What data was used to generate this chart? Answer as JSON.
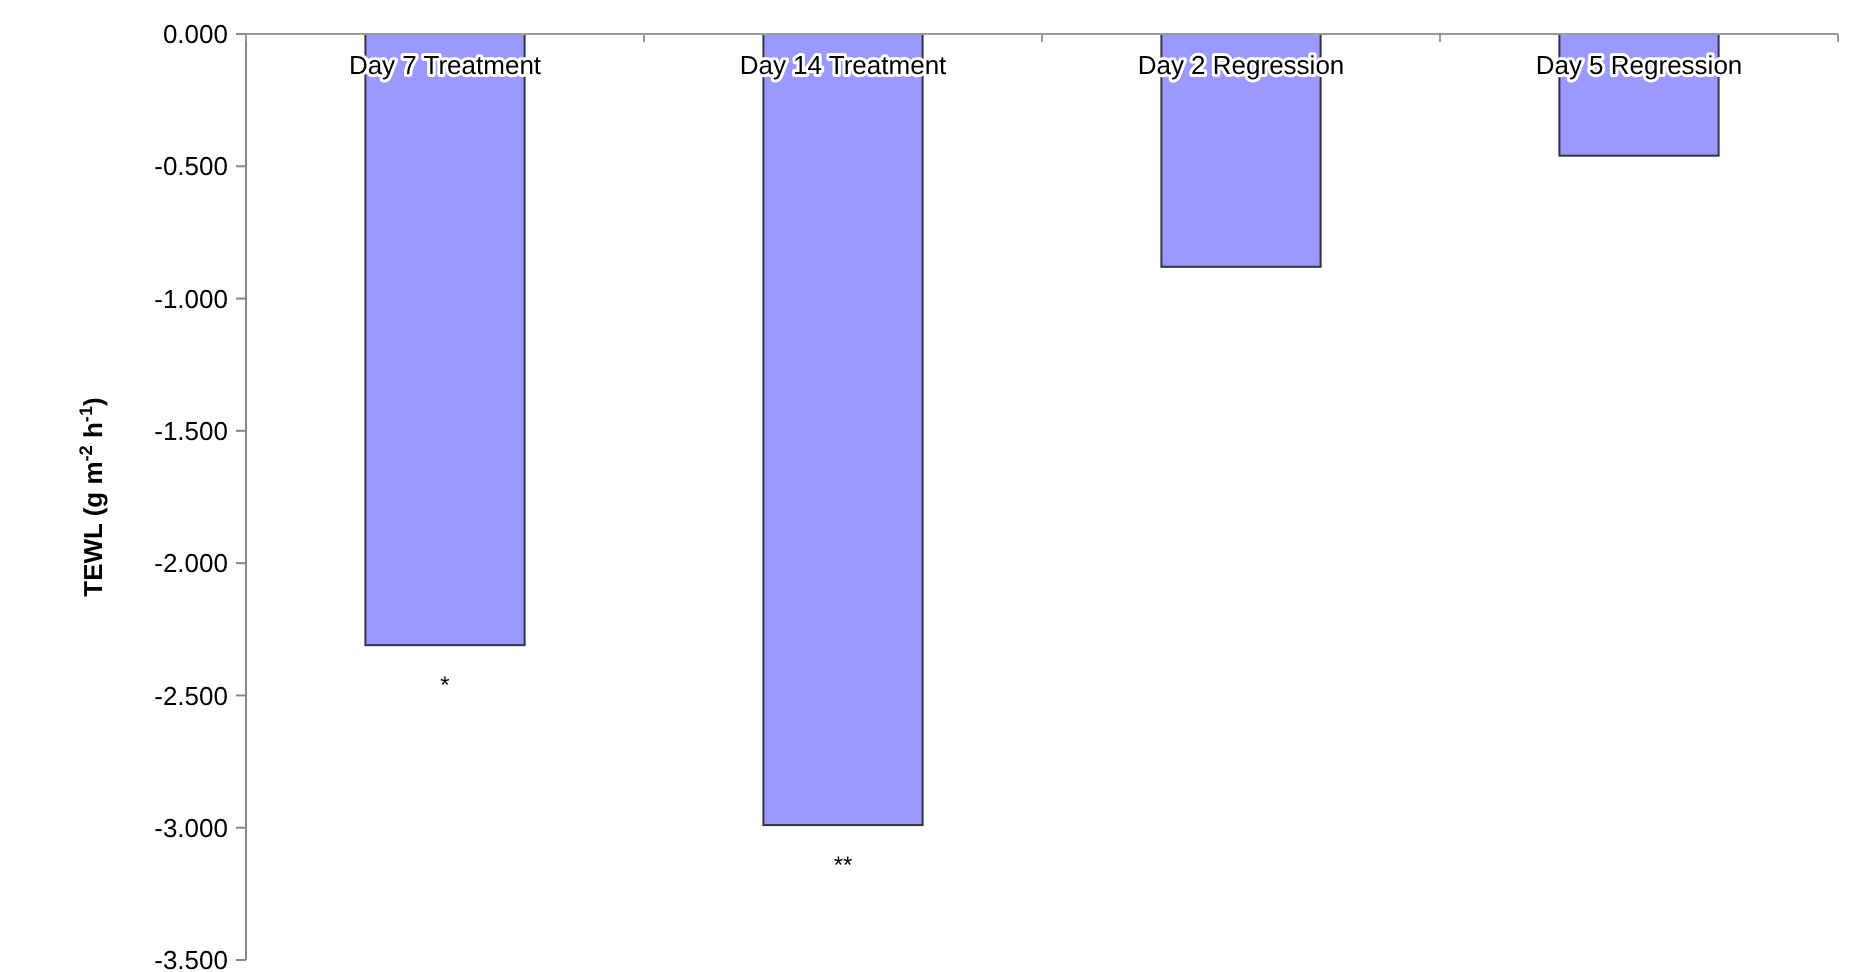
{
  "chart_data": {
    "type": "bar",
    "ylabel": "TEWL (g m$^{-2}$ h$^{-1}$)",
    "categories": [
      "Day 7 Treatment",
      "Day 14 Treatment",
      "Day 2 Regression",
      "Day 5 Regression"
    ],
    "values": [
      -2.31,
      -2.99,
      -0.88,
      -0.46
    ],
    "color": "#9999ff",
    "ylim": [
      -3.5,
      0
    ],
    "yticks": [
      {
        "value": -3.5,
        "label": "-3.500"
      },
      {
        "value": -3,
        "label": "-3.000"
      },
      {
        "value": -2.5,
        "label": "-2.500"
      },
      {
        "value": -2,
        "label": "-2.000"
      },
      {
        "value": -1.5,
        "label": "-1.500"
      },
      {
        "value": -1,
        "label": "-1.000"
      },
      {
        "value": -0.5,
        "label": "-0.500"
      },
      {
        "value": 0,
        "label": "0.000"
      }
    ],
    "annotations": [
      "*",
      "**"
    ]
  }
}
